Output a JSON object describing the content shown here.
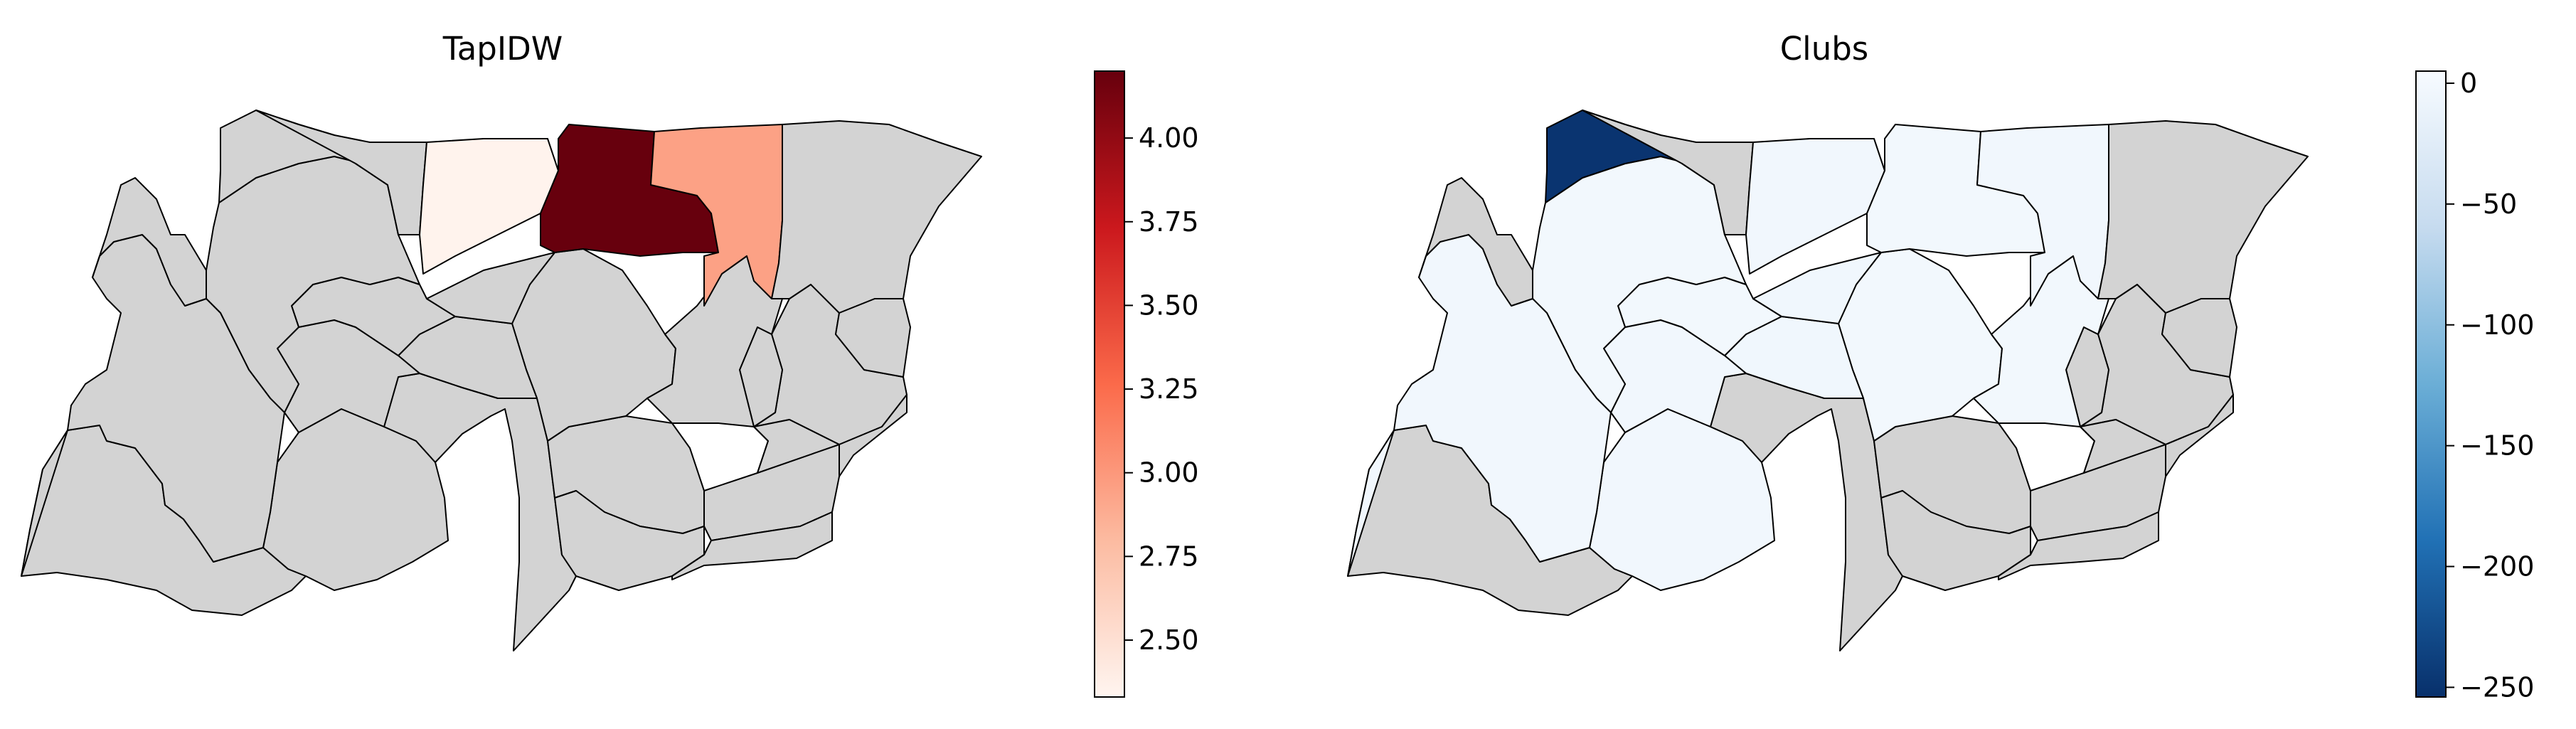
{
  "maps": [
    {
      "title": "TapIDW",
      "colormap": "Reds",
      "no_data_color": "#d3d3d3",
      "colorbar": {
        "min": 2.33,
        "max": 4.2,
        "stops": [
          "#fff5f0",
          "#fcbba1",
          "#fb6a4a",
          "#cb181d",
          "#67000d"
        ],
        "ticks": [
          {
            "value": 2.5,
            "label": "2.50"
          },
          {
            "value": 2.75,
            "label": "2.75"
          },
          {
            "value": 3.0,
            "label": "3.00"
          },
          {
            "value": 3.25,
            "label": "3.25"
          },
          {
            "value": 3.5,
            "label": "3.50"
          },
          {
            "value": 3.75,
            "label": "3.75"
          },
          {
            "value": 4.0,
            "label": "4.00"
          }
        ]
      },
      "regions": [
        {
          "id": "A",
          "value": null
        },
        {
          "id": "B",
          "value": null
        },
        {
          "id": "C",
          "value": null
        },
        {
          "id": "D",
          "value": 2.35
        },
        {
          "id": "E",
          "value": 4.2
        },
        {
          "id": "F",
          "value": 2.95
        },
        {
          "id": "G",
          "value": null
        },
        {
          "id": "H",
          "value": null
        },
        {
          "id": "I",
          "value": null
        },
        {
          "id": "J",
          "value": null
        },
        {
          "id": "K",
          "value": null
        },
        {
          "id": "L",
          "value": null
        },
        {
          "id": "M",
          "value": null
        },
        {
          "id": "N",
          "value": null
        },
        {
          "id": "O",
          "value": null
        },
        {
          "id": "P",
          "value": null
        },
        {
          "id": "Q",
          "value": null
        },
        {
          "id": "R",
          "value": null
        },
        {
          "id": "S",
          "value": null
        },
        {
          "id": "T",
          "value": null
        },
        {
          "id": "U",
          "value": null
        },
        {
          "id": "V",
          "value": null
        }
      ]
    },
    {
      "title": "Clubs",
      "colormap": "Blues_r",
      "no_data_color": "#d3d3d3",
      "colorbar": {
        "min": -254,
        "max": 5,
        "stops": [
          "#08306b",
          "#2171b5",
          "#6baed6",
          "#c6dbef",
          "#f7fbff"
        ],
        "ticks": [
          {
            "value": 0,
            "label": "0"
          },
          {
            "value": -50,
            "label": "−50"
          },
          {
            "value": -100,
            "label": "−100"
          },
          {
            "value": -150,
            "label": "−150"
          },
          {
            "value": -200,
            "label": "−200"
          },
          {
            "value": -250,
            "label": "−250"
          }
        ]
      },
      "regions": [
        {
          "id": "A",
          "value": -250
        },
        {
          "id": "B",
          "value": -3
        },
        {
          "id": "C",
          "value": -2
        },
        {
          "id": "D",
          "value": -3
        },
        {
          "id": "E",
          "value": -2
        },
        {
          "id": "F",
          "value": -3
        },
        {
          "id": "G",
          "value": -4
        },
        {
          "id": "H",
          "value": -2
        },
        {
          "id": "I",
          "value": -3
        },
        {
          "id": "J",
          "value": -4
        },
        {
          "id": "K",
          "value": -3
        },
        {
          "id": "L",
          "value": null
        },
        {
          "id": "M",
          "value": -2
        },
        {
          "id": "N",
          "value": -2
        },
        {
          "id": "O",
          "value": null
        },
        {
          "id": "P",
          "value": null
        },
        {
          "id": "Q",
          "value": null
        },
        {
          "id": "R",
          "value": null
        },
        {
          "id": "S",
          "value": null
        },
        {
          "id": "T",
          "value": null
        },
        {
          "id": "U",
          "value": null
        },
        {
          "id": "V",
          "value": null
        }
      ]
    }
  ]
}
